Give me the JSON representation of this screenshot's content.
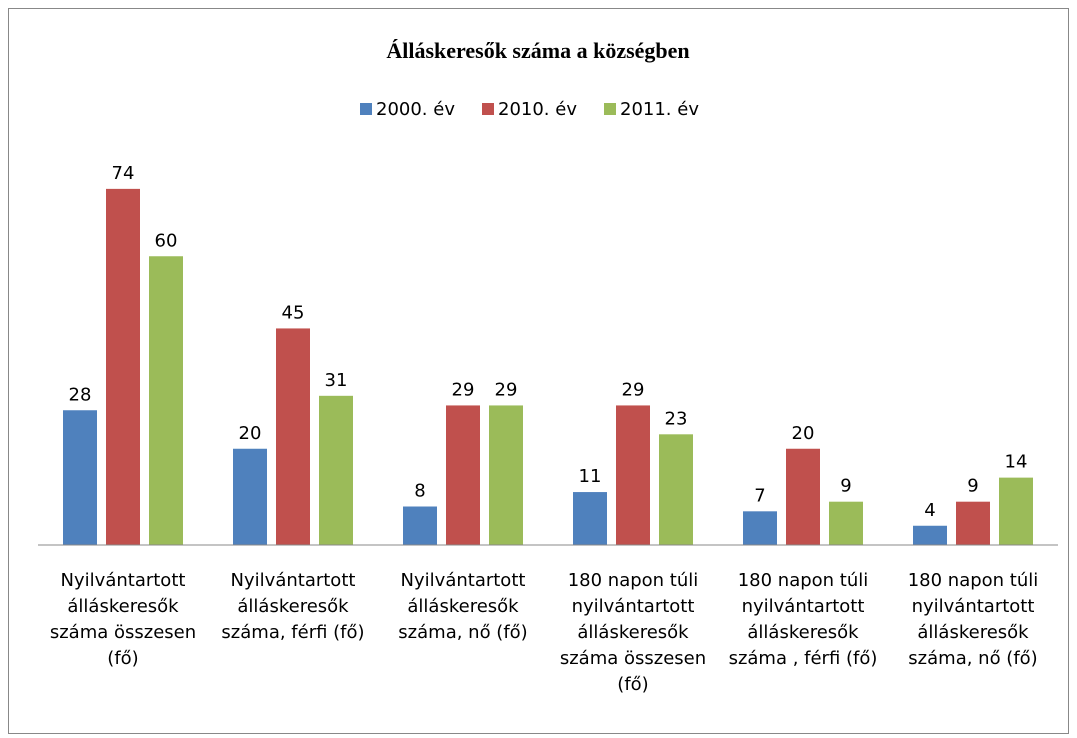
{
  "chart_data": {
    "type": "bar",
    "title": "Álláskeresők száma a községben",
    "categories": [
      "Nyilvántartott álláskeresők száma összesen (fő)",
      "Nyilvántartott álláskeresők száma, férfi (fő)",
      "Nyilvántartott álláskeresők száma, nő (fő)",
      "180 napon túli nyilvántartott álláskeresők száma összesen (fő)",
      "180 napon túli nyilvántartott álláskeresők száma , férfi (fő)",
      "180 napon túli nyilvántartott álláskeresők száma, nő (fő)"
    ],
    "series": [
      {
        "name": "2000. év",
        "color": "#4f81bd",
        "values": [
          28,
          20,
          8,
          11,
          7,
          4
        ]
      },
      {
        "name": "2010. év",
        "color": "#c0504d",
        "values": [
          74,
          45,
          29,
          29,
          20,
          9
        ]
      },
      {
        "name": "2011. év",
        "color": "#9bbb59",
        "values": [
          60,
          31,
          29,
          23,
          9,
          14
        ]
      }
    ],
    "ylim": [
      0,
      80
    ],
    "legend": "top"
  }
}
